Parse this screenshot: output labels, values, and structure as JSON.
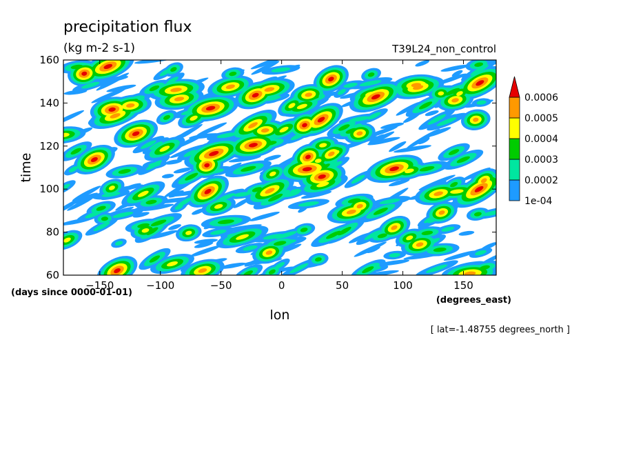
{
  "chart_data": {
    "type": "heatmap",
    "title": "precipitation flux",
    "units": "(kg m-2 s-1)",
    "dataset": "T39L24_non_control",
    "xlabel": "lon",
    "x_units": "(degrees_east)",
    "ylabel": "time",
    "y_units": "(days since 0000-01-01)",
    "slice_note": "[ lat=-1.48755 degrees_north ]",
    "xlim": [
      -180,
      177
    ],
    "ylim": [
      60,
      160
    ],
    "x_ticks": [
      -150,
      -100,
      -50,
      0,
      50,
      100,
      150
    ],
    "y_ticks": [
      60,
      80,
      100,
      120,
      140,
      160
    ],
    "colorbar": {
      "levels": [
        "1e-04",
        "0.0002",
        "0.0003",
        "0.0004",
        "0.0005",
        "0.0006"
      ],
      "colors": [
        "#1e9bff",
        "#00e6a0",
        "#00cc00",
        "#ffff00",
        "#ff9900",
        "#e60000"
      ],
      "extend": "max"
    }
  }
}
